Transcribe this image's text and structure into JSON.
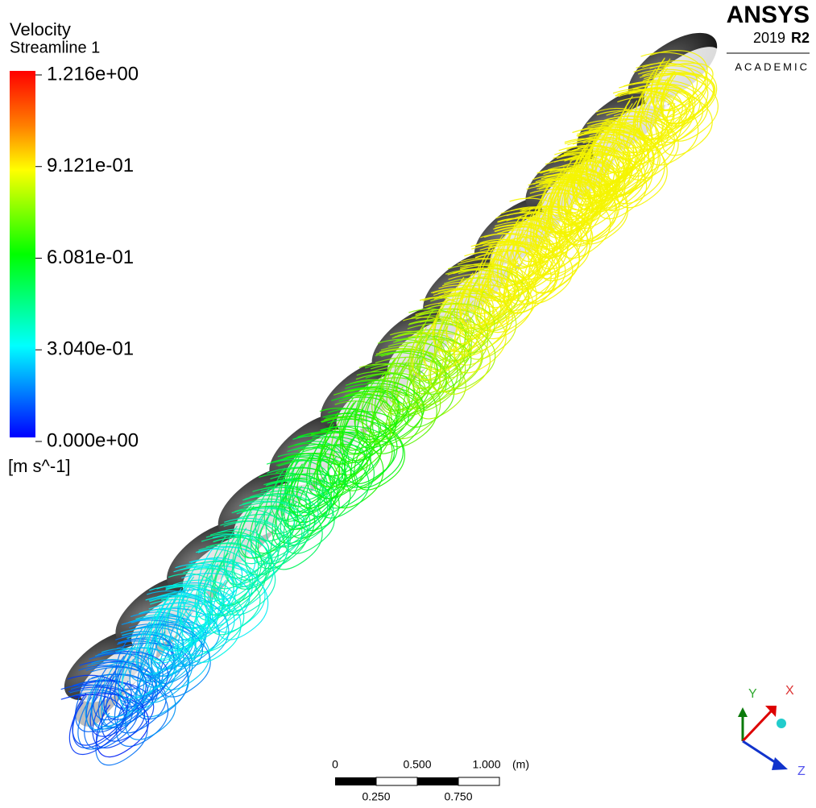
{
  "legend": {
    "title": "Velocity",
    "subtitle": "Streamline 1",
    "labels": [
      "1.216e+00",
      "9.121e-01",
      "6.081e-01",
      "3.040e-01",
      "0.000e+00"
    ],
    "unit": "[m s^-1]"
  },
  "logo": {
    "brand": "ANSYS",
    "year": "2019",
    "release": "R2",
    "edition": "ACADEMIC"
  },
  "scale_bar": {
    "top_labels": [
      "0",
      "0.500",
      "1.000"
    ],
    "unit": "(m)",
    "bottom_labels": [
      "0.250",
      "0.750"
    ]
  },
  "triad": {
    "y": "Y",
    "x": "X",
    "z": "Z"
  }
}
